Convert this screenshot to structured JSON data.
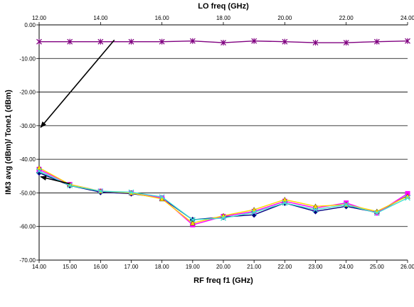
{
  "chart_data": {
    "type": "line",
    "top_axis": {
      "label": "LO freq (GHz)",
      "ticks": [
        "12.00",
        "14.00",
        "16.00",
        "18.00",
        "20.00",
        "22.00",
        "24.00"
      ],
      "range": [
        12,
        24
      ]
    },
    "xlabel": "RF freq f1 (GHz)",
    "ylabel": "IM3 avg (dBm)/ Tone1 (dBm)",
    "x_ticks": [
      "14.00",
      "15.00",
      "16.00",
      "17.00",
      "18.00",
      "19.00",
      "20.00",
      "21.00",
      "22.00",
      "23.00",
      "24.00",
      "25.00",
      "26.00"
    ],
    "y_ticks": [
      "0.00",
      "-10.00",
      "-20.00",
      "-30.00",
      "-40.00",
      "-50.00",
      "-60.00",
      "-70.00"
    ],
    "xlim": [
      14,
      26
    ],
    "ylim": [
      -70,
      0
    ],
    "grid": "horizontal",
    "legend": "none",
    "x": [
      14,
      15,
      16,
      17,
      18,
      19,
      20,
      21,
      22,
      23,
      24,
      25,
      26
    ],
    "series": [
      {
        "color": "#800080",
        "marker": "star",
        "axis": "top",
        "x": [
          12,
          13,
          14,
          15,
          16,
          17,
          18,
          19,
          20,
          21,
          22,
          23,
          24
        ],
        "values": [
          -5.0,
          -5.0,
          -5.0,
          -5.0,
          -5.0,
          -4.8,
          -5.3,
          -4.8,
          -5.0,
          -5.3,
          -5.3,
          -5.0,
          -4.8
        ]
      },
      {
        "color": "#000080",
        "marker": "diamond",
        "values": [
          -44.0,
          -47.8,
          -49.8,
          -50.2,
          -51.5,
          -58.0,
          -57.2,
          -56.5,
          -53.0,
          -55.5,
          -54.0,
          -55.8,
          -50.8
        ]
      },
      {
        "color": "#ff00ff",
        "marker": "square",
        "values": [
          -43.0,
          -47.5,
          -49.5,
          -50.0,
          -51.5,
          -59.5,
          -57.0,
          -55.5,
          -52.5,
          -54.5,
          -53.0,
          -56.0,
          -50.2
        ]
      },
      {
        "color": "#ffd700",
        "marker": "triangle",
        "values": [
          -42.5,
          -47.5,
          -49.5,
          -50.0,
          -51.8,
          -59.0,
          -56.8,
          -55.0,
          -52.0,
          -54.0,
          -53.5,
          -55.5,
          -51.0
        ]
      },
      {
        "color": "#40e0d0",
        "marker": "x",
        "values": [
          -43.5,
          -47.8,
          -49.5,
          -49.8,
          -51.2,
          -58.0,
          -57.5,
          -55.8,
          -53.0,
          -55.0,
          -53.5,
          -56.0,
          -51.5
        ]
      }
    ],
    "annotations": [
      {
        "type": "arrow",
        "from": [
          14.45,
          -4.5
        ],
        "to": [
          12.05,
          -30.5
        ],
        "axis": "top"
      },
      {
        "type": "arrow",
        "from": [
          15.0,
          -47.3
        ],
        "to": [
          14.05,
          -45.2
        ]
      }
    ]
  }
}
